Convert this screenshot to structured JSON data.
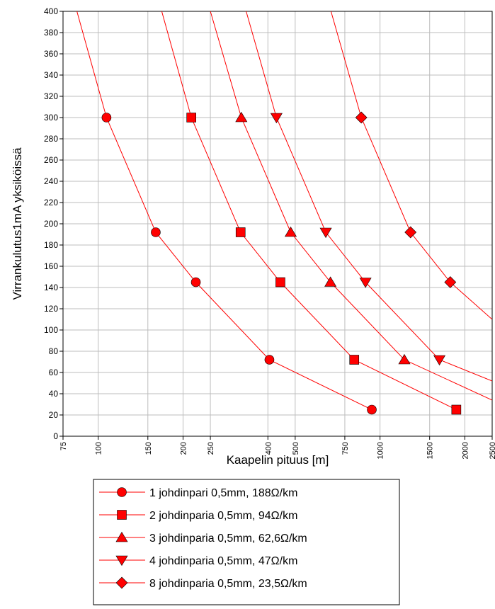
{
  "chart_data": {
    "type": "line",
    "xlabel": "Kaapelin pituus [m]",
    "ylabel": "Virrankulutus1mA yksiköissä",
    "xscale": "log",
    "xlim": [
      75,
      2500
    ],
    "ylim": [
      0,
      400
    ],
    "x_ticks": [
      75,
      100,
      150,
      200,
      250,
      400,
      500,
      750,
      1000,
      1500,
      2000,
      2500
    ],
    "y_ticks": [
      0,
      20,
      40,
      60,
      80,
      100,
      120,
      140,
      160,
      180,
      200,
      220,
      240,
      260,
      280,
      300,
      320,
      340,
      360,
      380,
      400
    ],
    "grid": true,
    "line_color": "#ff0000",
    "marker_color": "#ff0000",
    "legend_position": "bottom",
    "series": [
      {
        "name": "1 johdinpari 0,5mm, 188Ω/km",
        "marker": "circle",
        "points": [
          [
            107,
            300
          ],
          [
            160,
            192
          ],
          [
            222,
            145
          ],
          [
            405,
            72
          ],
          [
            935,
            25
          ]
        ],
        "line": [
          [
            84,
            400
          ],
          [
            107,
            300
          ],
          [
            160,
            192
          ],
          [
            222,
            145
          ],
          [
            405,
            72
          ],
          [
            935,
            25
          ]
        ]
      },
      {
        "name": "2 johdinparia 0,5mm, 94Ω/km",
        "marker": "square",
        "points": [
          [
            214,
            300
          ],
          [
            320,
            192
          ],
          [
            443,
            145
          ],
          [
            810,
            72
          ],
          [
            1865,
            25
          ]
        ],
        "line": [
          [
            168,
            400
          ],
          [
            214,
            300
          ],
          [
            320,
            192
          ],
          [
            443,
            145
          ],
          [
            810,
            72
          ],
          [
            1865,
            25
          ]
        ]
      },
      {
        "name": "3 johdinparia 0,5mm, 62,6Ω/km",
        "marker": "triangle-up",
        "points": [
          [
            322,
            300
          ],
          [
            482,
            192
          ],
          [
            667,
            145
          ],
          [
            1220,
            72
          ]
        ],
        "line": [
          [
            250,
            400
          ],
          [
            322,
            300
          ],
          [
            482,
            192
          ],
          [
            667,
            145
          ],
          [
            1220,
            72
          ],
          [
            2500,
            34
          ]
        ]
      },
      {
        "name": "4 johdinparia 0,5mm, 47Ω/km",
        "marker": "triangle-down",
        "points": [
          [
            429,
            300
          ],
          [
            642,
            192
          ],
          [
            888,
            145
          ],
          [
            1625,
            72
          ]
        ],
        "line": [
          [
            335,
            400
          ],
          [
            429,
            300
          ],
          [
            642,
            192
          ],
          [
            888,
            145
          ],
          [
            1625,
            72
          ],
          [
            2500,
            52
          ]
        ]
      },
      {
        "name": "8 johdinparia 0,5mm, 23,5Ω/km",
        "marker": "diamond",
        "points": [
          [
            858,
            300
          ],
          [
            1283,
            192
          ],
          [
            1775,
            145
          ]
        ],
        "line": [
          [
            670,
            400
          ],
          [
            858,
            300
          ],
          [
            1283,
            192
          ],
          [
            1775,
            145
          ],
          [
            2500,
            110
          ]
        ]
      }
    ]
  }
}
